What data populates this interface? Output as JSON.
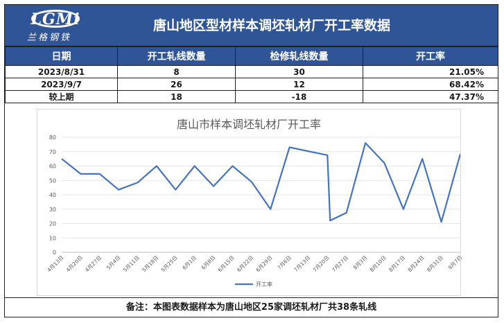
{
  "header": {
    "logo_letters": "LGMi",
    "logo_sub": "兰格钢铁",
    "title": "唐山地区型材样本调坯轧材厂开工率数据"
  },
  "table": {
    "columns": [
      "日期",
      "开工轧线数量",
      "检修轧线数量",
      "开工率"
    ],
    "rows": [
      [
        "2023/8/31",
        "8",
        "30",
        "21.05%"
      ],
      [
        "2023/9/7",
        "26",
        "12",
        "68.42%"
      ],
      [
        "较上期",
        "18",
        "-18",
        "47.37%"
      ]
    ]
  },
  "chart_data": {
    "type": "line",
    "title": "唐山市样本调坯轧材厂开工率",
    "xlabel": "",
    "ylabel": "",
    "ylim": [
      0,
      80
    ],
    "yticks": [
      0,
      10,
      20,
      30,
      40,
      50,
      60,
      70,
      80
    ],
    "x_tick_labels": [
      "4月13日",
      "4月20日",
      "4月27日",
      "5月4日",
      "5月11日",
      "5月18日",
      "5月25日",
      "6月1日",
      "6月8日",
      "6月15日",
      "6月22日",
      "6月29日",
      "7月6日",
      "7月13日",
      "7月20日",
      "7月27日",
      "8月3日",
      "8月10日",
      "8月17日",
      "8月24日",
      "8月31日",
      "9月7日"
    ],
    "grid": true,
    "legend": "bottom",
    "series": [
      {
        "name": "开工率",
        "color": "#4472c4",
        "points": [
          [
            "4月13日",
            65
          ],
          [
            "4月20日",
            54.5
          ],
          [
            "4月27日",
            54.5
          ],
          [
            "5月4日",
            43.5
          ],
          [
            "5月11日",
            48.5
          ],
          [
            "5月18日",
            60
          ],
          [
            "5月25日",
            43.5
          ],
          [
            "6月1日",
            60
          ],
          [
            "6月8日",
            46
          ],
          [
            "6月15日",
            60
          ],
          [
            "6月22日",
            49
          ],
          [
            "6月29日",
            30
          ],
          [
            "7月6日",
            73
          ],
          [
            "7月20日",
            67.5
          ],
          [
            "7月21日",
            22
          ],
          [
            "7月27日",
            27.5
          ],
          [
            "8月3日",
            76
          ],
          [
            "8月10日",
            62
          ],
          [
            "8月17日",
            30
          ],
          [
            "8月24日",
            65
          ],
          [
            "8月31日",
            21.05
          ],
          [
            "9月7日",
            68.42
          ]
        ]
      }
    ]
  },
  "footer": {
    "note": "备注：本图表数据样本为唐山地区25家调坯轧材厂共38条轧线"
  }
}
